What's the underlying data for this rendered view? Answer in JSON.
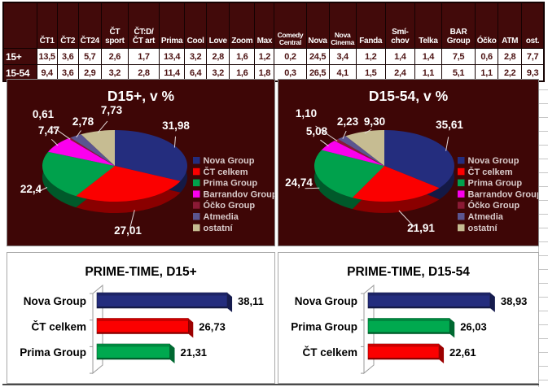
{
  "page": {
    "background": "#FFFFFF"
  },
  "colors": {
    "table_header_bg": "#420A0A",
    "table_value_text": "#4C1212",
    "pie_panel_bg": "#3E0606",
    "legend_text": "#D9CBCB",
    "data_label_text": "#FFFFFF",
    "bar_text": "#000000"
  },
  "table": {
    "corner_label": "",
    "columns": [
      "ČT1",
      "ČT2",
      "ČT24",
      "ČT\nsport",
      "ČT:D/\nČT art",
      "Prima",
      "Cool",
      "Love",
      "Zoom",
      "Max",
      "Comedy\nCentral",
      "Nova",
      "Nova\nCinema",
      "Fanda",
      "Smí-\nchov",
      "Telka",
      "BAR\nGroup",
      "Óčko",
      "ATM",
      "ost."
    ],
    "rows": [
      {
        "label": "15+",
        "values": [
          "13,5",
          "3,6",
          "5,7",
          "2,6",
          "1,7",
          "13,4",
          "3,2",
          "2,8",
          "1,6",
          "1,2",
          "0,2",
          "24,5",
          "3,4",
          "1,2",
          "1,4",
          "1,4",
          "7,5",
          "0,6",
          "2,8",
          "7,7"
        ]
      },
      {
        "label": "15-54",
        "values": [
          "9,4",
          "3,6",
          "2,9",
          "3,2",
          "2,8",
          "11,4",
          "6,4",
          "3,2",
          "1,6",
          "1,8",
          "0,3",
          "26,5",
          "4,1",
          "1,5",
          "2,4",
          "1,1",
          "5,1",
          "1,1",
          "2,2",
          "9,3"
        ]
      }
    ]
  },
  "chart_data": [
    {
      "type": "pie",
      "title": "D15+, v %",
      "categories": [
        "Nova Group",
        "ČT celkem",
        "Prima Group",
        "Barrandov Group",
        "Óčko Group",
        "Atmedia",
        "ostatní"
      ],
      "values": [
        31.98,
        27.01,
        22.4,
        7.47,
        0.61,
        2.78,
        7.73
      ],
      "labels": [
        "31,98",
        "27,01",
        "22,4",
        "7,47",
        "0,61",
        "2,78",
        "7,73"
      ],
      "colors": [
        "#242D7E",
        "#FB0000",
        "#00A14C",
        "#FB00EE",
        "#8A1A35",
        "#5B5590",
        "#C6BC92"
      ],
      "legend_position": "right",
      "label_pos": [
        [
          207,
          57
        ],
        [
          148,
          186
        ],
        [
          29,
          135
        ],
        [
          51,
          63
        ],
        [
          44,
          43
        ],
        [
          93,
          52
        ],
        [
          128,
          38
        ]
      ]
    },
    {
      "type": "pie",
      "title": "D15-54, v %",
      "categories": [
        "Nova Group",
        "ČT celkem",
        "Prima Group",
        "Barrandov Group",
        "Óčko Group",
        "Atmedia",
        "ostatní"
      ],
      "values": [
        35.61,
        21.91,
        24.74,
        5.08,
        1.1,
        2.23,
        9.3
      ],
      "labels": [
        "35,61",
        "21,91",
        "24,74",
        "5,08",
        "1,10",
        "2,23",
        "9,30"
      ],
      "colors": [
        "#242D7E",
        "#FB0000",
        "#00A14C",
        "#FB00EE",
        "#8A1A35",
        "#5B5590",
        "#C6BC92"
      ],
      "legend_position": "right",
      "label_pos": [
        [
          210,
          56
        ],
        [
          175,
          183
        ],
        [
          25,
          127
        ],
        [
          47,
          64
        ],
        [
          34,
          42
        ],
        [
          85,
          52
        ],
        [
          118,
          52
        ]
      ]
    },
    {
      "type": "bar",
      "title": "PRIME-TIME, D15+",
      "categories": [
        "Nova Group",
        "ČT celkem",
        "Prima Group"
      ],
      "values": [
        38.11,
        26.73,
        21.31
      ],
      "labels": [
        "38,11",
        "26,73",
        "21,31"
      ],
      "colors": [
        "#242D7E",
        "#FB0000",
        "#00A94F"
      ],
      "xlim": [
        0,
        45
      ],
      "grid": "off",
      "legend_position": "none"
    },
    {
      "type": "bar",
      "title": "PRIME-TIME, D15-54",
      "categories": [
        "Nova Group",
        "Prima Group",
        "ČT celkem"
      ],
      "values": [
        38.93,
        26.03,
        22.61
      ],
      "labels": [
        "38,93",
        "26,03",
        "22,61"
      ],
      "colors": [
        "#242D7E",
        "#00A94F",
        "#FB0000"
      ],
      "xlim": [
        0,
        45
      ],
      "grid": "off",
      "legend_position": "none"
    }
  ]
}
